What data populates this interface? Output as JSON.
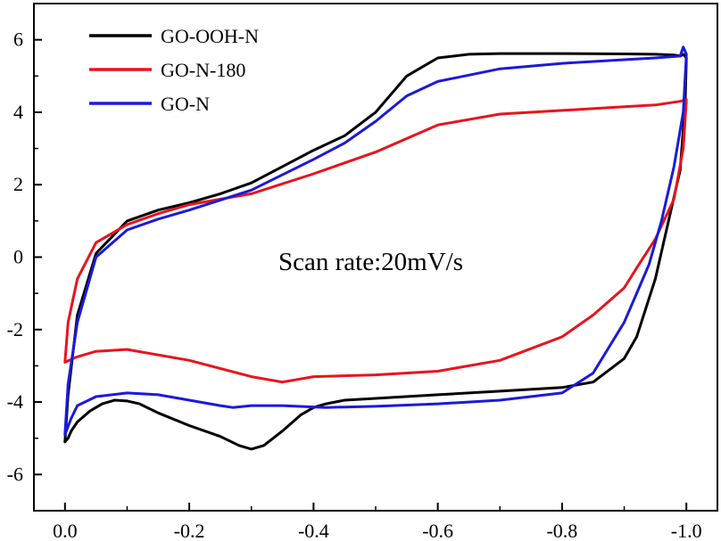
{
  "chart_data": {
    "type": "line",
    "title": "",
    "xlabel": "",
    "ylabel": "",
    "xlim": [
      0.05,
      -1.05
    ],
    "ylim": [
      -7,
      7
    ],
    "x_reversed": true,
    "xticks": [
      0.0,
      -0.2,
      -0.4,
      -0.6,
      -0.8,
      -1.0
    ],
    "xtick_labels": [
      "0.0",
      "-0.2",
      "-0.4",
      "-0.6",
      "-0.8",
      "-1.0"
    ],
    "yticks": [
      -6,
      -4,
      -2,
      0,
      2,
      4,
      6
    ],
    "ytick_labels": [
      "-6",
      "-4",
      "-2",
      "0",
      "2",
      "4",
      "6"
    ],
    "grid": false,
    "legend_position": "top-left",
    "annotation": "Scan rate:20mV/s",
    "series": [
      {
        "name": "GO-OOH-N",
        "color": "#000000",
        "x": [
          0.0,
          -0.005,
          -0.02,
          -0.05,
          -0.1,
          -0.15,
          -0.2,
          -0.25,
          -0.3,
          -0.35,
          -0.4,
          -0.45,
          -0.5,
          -0.55,
          -0.6,
          -0.65,
          -0.7,
          -0.8,
          -0.9,
          -0.95,
          -0.98,
          -0.99,
          -0.995,
          -1.0,
          -0.998,
          -0.99,
          -0.97,
          -0.95,
          -0.92,
          -0.9,
          -0.85,
          -0.8,
          -0.7,
          -0.6,
          -0.5,
          -0.45,
          -0.42,
          -0.4,
          -0.38,
          -0.35,
          -0.32,
          -0.3,
          -0.28,
          -0.25,
          -0.2,
          -0.15,
          -0.12,
          -0.1,
          -0.08,
          -0.06,
          -0.04,
          -0.02,
          -0.01,
          -0.005,
          0.0
        ],
        "y": [
          -5.1,
          -3.8,
          -1.6,
          0.1,
          1.0,
          1.3,
          1.5,
          1.75,
          2.05,
          2.5,
          2.95,
          3.35,
          4.0,
          5.0,
          5.5,
          5.6,
          5.62,
          5.62,
          5.61,
          5.6,
          5.58,
          5.55,
          5.6,
          5.5,
          4.2,
          2.4,
          0.9,
          -0.6,
          -2.2,
          -2.8,
          -3.45,
          -3.6,
          -3.7,
          -3.8,
          -3.9,
          -3.95,
          -4.05,
          -4.15,
          -4.35,
          -4.8,
          -5.2,
          -5.3,
          -5.2,
          -4.95,
          -4.65,
          -4.3,
          -4.05,
          -3.97,
          -3.95,
          -4.05,
          -4.25,
          -4.55,
          -4.8,
          -5.0,
          -5.1
        ]
      },
      {
        "name": "GO-N-180",
        "color": "#e8141c",
        "x": [
          0.0,
          -0.005,
          -0.02,
          -0.05,
          -0.1,
          -0.15,
          -0.2,
          -0.3,
          -0.4,
          -0.5,
          -0.6,
          -0.7,
          -0.8,
          -0.9,
          -0.95,
          -0.99,
          -1.0,
          -0.995,
          -0.98,
          -0.95,
          -0.92,
          -0.9,
          -0.85,
          -0.8,
          -0.7,
          -0.6,
          -0.5,
          -0.4,
          -0.35,
          -0.3,
          -0.2,
          -0.1,
          -0.05,
          -0.02,
          0.0
        ],
        "y": [
          -2.9,
          -1.8,
          -0.6,
          0.4,
          0.9,
          1.2,
          1.45,
          1.75,
          2.3,
          2.9,
          3.65,
          3.95,
          4.05,
          4.15,
          4.2,
          4.3,
          4.35,
          3.0,
          1.6,
          0.5,
          -0.3,
          -0.85,
          -1.6,
          -2.2,
          -2.85,
          -3.15,
          -3.25,
          -3.3,
          -3.45,
          -3.3,
          -2.85,
          -2.55,
          -2.6,
          -2.75,
          -2.9
        ]
      },
      {
        "name": "GO-N",
        "color": "#1a1adc",
        "x": [
          0.0,
          -0.005,
          -0.02,
          -0.05,
          -0.1,
          -0.15,
          -0.2,
          -0.3,
          -0.4,
          -0.45,
          -0.5,
          -0.55,
          -0.6,
          -0.7,
          -0.8,
          -0.9,
          -0.95,
          -0.99,
          -0.995,
          -1.0,
          -0.995,
          -0.98,
          -0.96,
          -0.94,
          -0.92,
          -0.9,
          -0.85,
          -0.8,
          -0.7,
          -0.6,
          -0.5,
          -0.42,
          -0.35,
          -0.3,
          -0.27,
          -0.25,
          -0.2,
          -0.15,
          -0.1,
          -0.05,
          -0.02,
          -0.01,
          0.0
        ],
        "y": [
          -4.9,
          -3.5,
          -1.8,
          0.0,
          0.75,
          1.05,
          1.3,
          1.85,
          2.7,
          3.15,
          3.75,
          4.45,
          4.85,
          5.2,
          5.35,
          5.45,
          5.5,
          5.55,
          5.8,
          5.6,
          4.0,
          2.5,
          1.0,
          -0.2,
          -1.0,
          -1.8,
          -3.2,
          -3.75,
          -3.95,
          -4.05,
          -4.12,
          -4.15,
          -4.1,
          -4.1,
          -4.15,
          -4.1,
          -3.95,
          -3.8,
          -3.75,
          -3.85,
          -4.1,
          -4.45,
          -4.9
        ]
      }
    ]
  }
}
